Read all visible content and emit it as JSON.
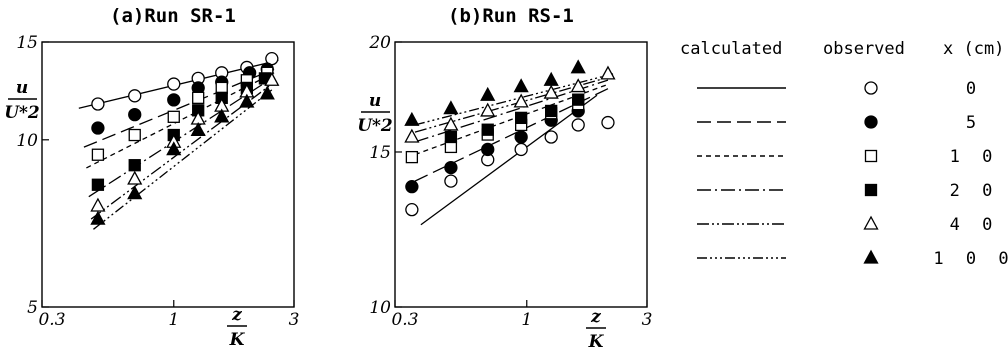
{
  "chart_data": [
    {
      "type": "scatter",
      "title": "(a)Run SR-1",
      "xlabel_num": "z",
      "xlabel_den": "K",
      "ylabel_num": "u",
      "ylabel_den": "U*2",
      "xscale": "log",
      "yscale": "log",
      "xlim": [
        0.3,
        3
      ],
      "ylim": [
        5,
        15
      ],
      "x_ticks": [
        {
          "value": 0.3,
          "label": "0.3"
        },
        {
          "value": 1,
          "label": "1"
        },
        {
          "value": 3,
          "label": "3"
        }
      ],
      "y_ticks": [
        {
          "value": 5,
          "label": "5"
        },
        {
          "value": 10,
          "label": "10"
        },
        {
          "value": 15,
          "label": "15"
        }
      ],
      "series": [
        {
          "x_cm": "0",
          "marker": "circle-open",
          "x": [
            0.5,
            0.7,
            1.0,
            1.25,
            1.55,
            1.95,
            2.45
          ],
          "y": [
            11.6,
            12.0,
            12.6,
            12.9,
            13.2,
            13.5,
            14.0
          ]
        },
        {
          "x_cm": "5",
          "marker": "circle-filled",
          "x": [
            0.5,
            0.7,
            1.0,
            1.25,
            1.55,
            2.0,
            2.35
          ],
          "y": [
            10.5,
            11.1,
            11.8,
            12.4,
            12.7,
            13.2,
            13.4
          ]
        },
        {
          "x_cm": "10",
          "marker": "square-open",
          "x": [
            0.5,
            0.7,
            1.0,
            1.25,
            1.55,
            1.95,
            2.35
          ],
          "y": [
            9.4,
            10.2,
            11.0,
            11.9,
            12.4,
            12.8,
            13.2
          ]
        },
        {
          "x_cm": "20",
          "marker": "square-filled",
          "x": [
            0.5,
            0.7,
            1.0,
            1.25,
            1.55,
            1.95,
            2.3
          ],
          "y": [
            8.3,
            9.0,
            10.2,
            11.3,
            11.9,
            12.4,
            12.9
          ]
        },
        {
          "x_cm": "40",
          "marker": "triangle-open",
          "x": [
            0.5,
            0.7,
            1.0,
            1.25,
            1.55,
            1.95,
            2.45
          ],
          "y": [
            7.6,
            8.5,
            9.9,
            10.9,
            11.5,
            12.2,
            12.8
          ]
        },
        {
          "x_cm": "100",
          "marker": "triangle-filled",
          "x": [
            0.5,
            0.7,
            1.0,
            1.25,
            1.55,
            1.95,
            2.35
          ],
          "y": [
            7.2,
            8.0,
            9.6,
            10.4,
            11.0,
            11.7,
            12.1
          ]
        }
      ],
      "lines": [
        {
          "style": "solid",
          "p0": [
            0.42,
            11.4
          ],
          "p1": [
            2.6,
            13.9
          ]
        },
        {
          "style": "long-dash",
          "p0": [
            0.44,
            9.7
          ],
          "p1": [
            2.5,
            13.4
          ]
        },
        {
          "style": "short-dash",
          "p0": [
            0.45,
            8.9
          ],
          "p1": [
            2.5,
            13.2
          ]
        },
        {
          "style": "dash-dot",
          "p0": [
            0.46,
            7.9
          ],
          "p1": [
            2.45,
            12.9
          ]
        },
        {
          "style": "dash-dot-dot",
          "p0": [
            0.47,
            7.2
          ],
          "p1": [
            2.45,
            12.6
          ]
        },
        {
          "style": "dash-dot-dot-dot",
          "p0": [
            0.48,
            6.9
          ],
          "p1": [
            2.45,
            12.3
          ]
        }
      ]
    },
    {
      "type": "scatter",
      "title": "(b)Run RS-1",
      "xlabel_num": "z",
      "xlabel_den": "K",
      "ylabel_num": "u",
      "ylabel_den": "U*2",
      "xscale": "log",
      "yscale": "log",
      "xlim": [
        0.3,
        3
      ],
      "ylim": [
        10,
        20
      ],
      "x_ticks": [
        {
          "value": 0.3,
          "label": "0.3"
        },
        {
          "value": 1,
          "label": "1"
        },
        {
          "value": 3,
          "label": "3"
        }
      ],
      "y_ticks": [
        {
          "value": 10,
          "label": "10"
        },
        {
          "value": 15,
          "label": "15"
        },
        {
          "value": 20,
          "label": "20"
        }
      ],
      "series": [
        {
          "x_cm": "0",
          "marker": "circle-open",
          "x": [
            0.35,
            0.5,
            0.7,
            0.95,
            1.25,
            1.6,
            2.1
          ],
          "y": [
            12.9,
            13.9,
            14.7,
            15.1,
            15.6,
            16.1,
            16.2
          ]
        },
        {
          "x_cm": "5",
          "marker": "circle-filled",
          "x": [
            0.35,
            0.5,
            0.7,
            0.95,
            1.25,
            1.6
          ],
          "y": [
            13.7,
            14.4,
            15.1,
            15.6,
            16.3,
            16.7
          ]
        },
        {
          "x_cm": "10",
          "marker": "square-open",
          "x": [
            0.35,
            0.5,
            0.7,
            0.95,
            1.25,
            1.6
          ],
          "y": [
            14.8,
            15.2,
            15.7,
            16.1,
            16.6,
            17.0
          ]
        },
        {
          "x_cm": "20",
          "marker": "square-filled",
          "x": [
            0.5,
            0.7,
            0.95,
            1.25,
            1.6
          ],
          "y": [
            15.6,
            15.9,
            16.4,
            16.7,
            17.2
          ]
        },
        {
          "x_cm": "40",
          "marker": "triangle-open",
          "x": [
            0.35,
            0.5,
            0.7,
            0.95,
            1.25,
            1.6,
            2.1
          ],
          "y": [
            15.6,
            16.1,
            16.7,
            17.1,
            17.5,
            17.8,
            18.4
          ]
        },
        {
          "x_cm": "100",
          "marker": "triangle-filled",
          "x": [
            0.35,
            0.5,
            0.7,
            0.95,
            1.25,
            1.6
          ],
          "y": [
            16.3,
            16.8,
            17.4,
            17.8,
            18.1,
            18.7
          ]
        }
      ],
      "lines": [
        {
          "style": "solid",
          "p0": [
            0.38,
            12.4
          ],
          "p1": [
            1.9,
            17.4
          ]
        },
        {
          "style": "long-dash",
          "p0": [
            0.36,
            13.9
          ],
          "p1": [
            2.1,
            17.7
          ]
        },
        {
          "style": "short-dash",
          "p0": [
            0.36,
            14.9
          ],
          "p1": [
            2.1,
            17.9
          ]
        },
        {
          "style": "dash-dot",
          "p0": [
            0.36,
            15.4
          ],
          "p1": [
            2.1,
            18.1
          ]
        },
        {
          "style": "dash-dot-dot",
          "p0": [
            0.36,
            15.8
          ],
          "p1": [
            2.2,
            18.3
          ]
        },
        {
          "style": "dash-dot-dot-dot",
          "p0": [
            0.36,
            16.1
          ],
          "p1": [
            2.2,
            18.4
          ]
        }
      ]
    }
  ],
  "legend": {
    "calculated_header": "calculated",
    "observed_header": "observed",
    "x_header": "x (cm)",
    "rows": [
      {
        "style": "solid",
        "marker": "circle-open",
        "x": "0"
      },
      {
        "style": "long-dash",
        "marker": "circle-filled",
        "x": "5"
      },
      {
        "style": "short-dash",
        "marker": "square-open",
        "x": "1 0"
      },
      {
        "style": "dash-dot",
        "marker": "square-filled",
        "x": "2 0"
      },
      {
        "style": "dash-dot-dot",
        "marker": "triangle-open",
        "x": "4 0"
      },
      {
        "style": "dash-dot-dot-dot",
        "marker": "triangle-filled",
        "x": "1 0 0"
      }
    ]
  }
}
